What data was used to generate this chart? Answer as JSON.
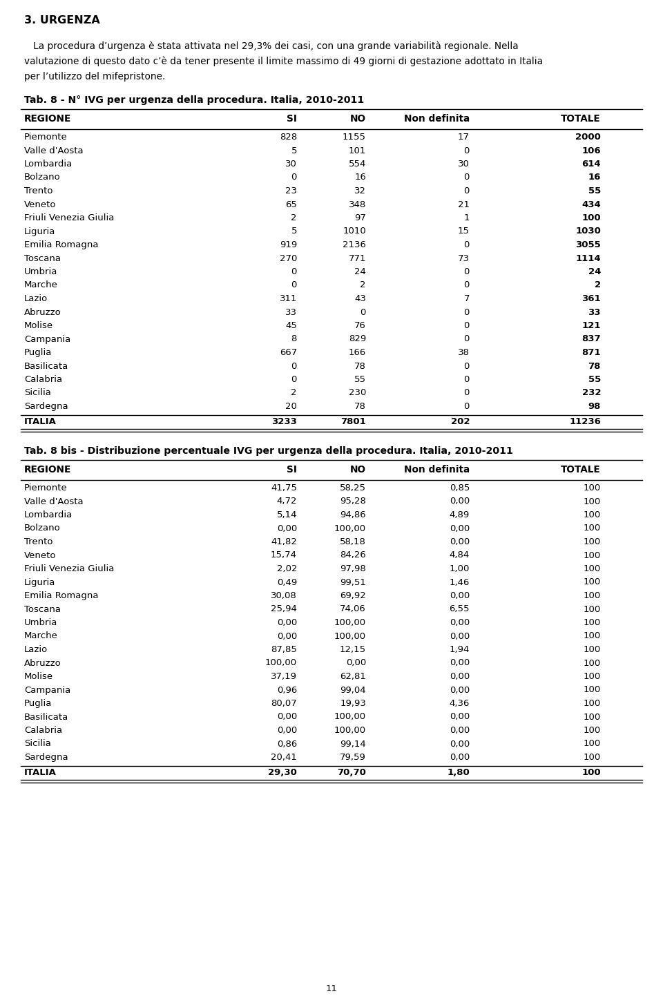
{
  "title_section": "3. URGENZA",
  "intro_line1": "   La procedura d’urgenza è stata attivata nel 29,3% dei casi, con una grande variabilità regionale. Nella",
  "intro_line2": "valutazione di questo dato c’è da tener presente il limite massimo di 49 giorni di gestazione adottato in Italia",
  "intro_line3": "per l’utilizzo del mifepristone.",
  "table1_title": "Tab. 8 - N° IVG per urgenza della procedura. Italia, 2010-2011",
  "table1_headers": [
    "REGIONE",
    "SI",
    "NO",
    "Non definita",
    "TOTALE"
  ],
  "table1_rows": [
    [
      "Piemonte",
      "828",
      "1155",
      "17",
      "2000"
    ],
    [
      "Valle d'Aosta",
      "5",
      "101",
      "0",
      "106"
    ],
    [
      "Lombardia",
      "30",
      "554",
      "30",
      "614"
    ],
    [
      "Bolzano",
      "0",
      "16",
      "0",
      "16"
    ],
    [
      "Trento",
      "23",
      "32",
      "0",
      "55"
    ],
    [
      "Veneto",
      "65",
      "348",
      "21",
      "434"
    ],
    [
      "Friuli Venezia Giulia",
      "2",
      "97",
      "1",
      "100"
    ],
    [
      "Liguria",
      "5",
      "1010",
      "15",
      "1030"
    ],
    [
      "Emilia Romagna",
      "919",
      "2136",
      "0",
      "3055"
    ],
    [
      "Toscana",
      "270",
      "771",
      "73",
      "1114"
    ],
    [
      "Umbria",
      "0",
      "24",
      "0",
      "24"
    ],
    [
      "Marche",
      "0",
      "2",
      "0",
      "2"
    ],
    [
      "Lazio",
      "311",
      "43",
      "7",
      "361"
    ],
    [
      "Abruzzo",
      "33",
      "0",
      "0",
      "33"
    ],
    [
      "Molise",
      "45",
      "76",
      "0",
      "121"
    ],
    [
      "Campania",
      "8",
      "829",
      "0",
      "837"
    ],
    [
      "Puglia",
      "667",
      "166",
      "38",
      "871"
    ],
    [
      "Basilicata",
      "0",
      "78",
      "0",
      "78"
    ],
    [
      "Calabria",
      "0",
      "55",
      "0",
      "55"
    ],
    [
      "Sicilia",
      "2",
      "230",
      "0",
      "232"
    ],
    [
      "Sardegna",
      "20",
      "78",
      "0",
      "98"
    ]
  ],
  "table1_total": [
    "ITALIA",
    "3233",
    "7801",
    "202",
    "11236"
  ],
  "table2_title": "Tab. 8 bis - Distribuzione percentuale IVG per urgenza della procedura. Italia, 2010-2011",
  "table2_headers": [
    "REGIONE",
    "SI",
    "NO",
    "Non definita",
    "TOTALE"
  ],
  "table2_rows": [
    [
      "Piemonte",
      "41,75",
      "58,25",
      "0,85",
      "100"
    ],
    [
      "Valle d'Aosta",
      "4,72",
      "95,28",
      "0,00",
      "100"
    ],
    [
      "Lombardia",
      "5,14",
      "94,86",
      "4,89",
      "100"
    ],
    [
      "Bolzano",
      "0,00",
      "100,00",
      "0,00",
      "100"
    ],
    [
      "Trento",
      "41,82",
      "58,18",
      "0,00",
      "100"
    ],
    [
      "Veneto",
      "15,74",
      "84,26",
      "4,84",
      "100"
    ],
    [
      "Friuli Venezia Giulia",
      "2,02",
      "97,98",
      "1,00",
      "100"
    ],
    [
      "Liguria",
      "0,49",
      "99,51",
      "1,46",
      "100"
    ],
    [
      "Emilia Romagna",
      "30,08",
      "69,92",
      "0,00",
      "100"
    ],
    [
      "Toscana",
      "25,94",
      "74,06",
      "6,55",
      "100"
    ],
    [
      "Umbria",
      "0,00",
      "100,00",
      "0,00",
      "100"
    ],
    [
      "Marche",
      "0,00",
      "100,00",
      "0,00",
      "100"
    ],
    [
      "Lazio",
      "87,85",
      "12,15",
      "1,94",
      "100"
    ],
    [
      "Abruzzo",
      "100,00",
      "0,00",
      "0,00",
      "100"
    ],
    [
      "Molise",
      "37,19",
      "62,81",
      "0,00",
      "100"
    ],
    [
      "Campania",
      "0,96",
      "99,04",
      "0,00",
      "100"
    ],
    [
      "Puglia",
      "80,07",
      "19,93",
      "4,36",
      "100"
    ],
    [
      "Basilicata",
      "0,00",
      "100,00",
      "0,00",
      "100"
    ],
    [
      "Calabria",
      "0,00",
      "100,00",
      "0,00",
      "100"
    ],
    [
      "Sicilia",
      "0,86",
      "99,14",
      "0,00",
      "100"
    ],
    [
      "Sardegna",
      "20,41",
      "79,59",
      "0,00",
      "100"
    ]
  ],
  "table2_total": [
    "ITALIA",
    "29,30",
    "70,70",
    "1,80",
    "100"
  ],
  "page_number": "11",
  "bg_color": "#ffffff",
  "text_color": "#000000"
}
